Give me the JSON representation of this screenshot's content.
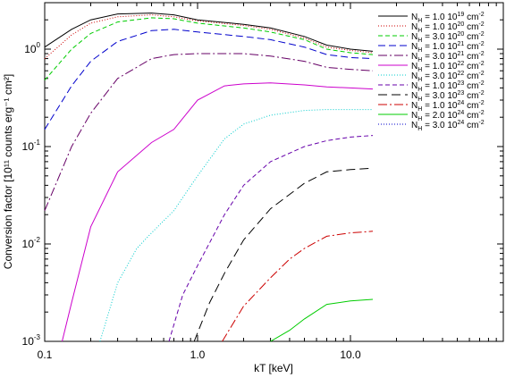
{
  "chart_data": {
    "type": "line",
    "title": "",
    "xlabel": "kT [keV]",
    "ylabel": "Conversion factor [10¹¹ counts erg⁻¹ cm²]",
    "x_scale": "log",
    "y_scale": "log",
    "xlim": [
      0.1,
      100
    ],
    "ylim": [
      0.001,
      3.0
    ],
    "x_ticks": [
      {
        "value": 0.1,
        "label": "0.1"
      },
      {
        "value": 1.0,
        "label": "1.0"
      },
      {
        "value": 10.0,
        "label": "10.0"
      }
    ],
    "y_ticks": [
      {
        "value": 1,
        "base": "10",
        "exp": "0"
      },
      {
        "value": 0.1,
        "base": "10",
        "exp": "-1"
      },
      {
        "value": 0.01,
        "base": "10",
        "exp": "-2"
      },
      {
        "value": 0.001,
        "base": "10",
        "exp": "-3"
      }
    ],
    "grid": false,
    "legend_position": "top-right",
    "series": [
      {
        "legend_prefix": "N",
        "legend_sub": "H",
        "legend_mid": " = 1.0 10",
        "legend_exp": "19",
        "legend_unit": " cm",
        "legend_unit_exp": "-2",
        "color": "#000000",
        "dash": "",
        "x": [
          0.1,
          0.15,
          0.2,
          0.3,
          0.5,
          0.7,
          1,
          2,
          3,
          5,
          7,
          10,
          14
        ],
        "y": [
          1.05,
          1.6,
          2.0,
          2.3,
          2.35,
          2.25,
          2.0,
          1.8,
          1.65,
          1.35,
          1.1,
          1.0,
          0.95
        ]
      },
      {
        "legend_prefix": "N",
        "legend_sub": "H",
        "legend_mid": " = 1.0 10",
        "legend_exp": "20",
        "legend_unit": " cm",
        "legend_unit_exp": "-2",
        "color": "#cc0000",
        "dash": "1,2",
        "x": [
          0.1,
          0.15,
          0.2,
          0.3,
          0.5,
          0.7,
          1,
          2,
          3,
          5,
          7,
          10,
          14
        ],
        "y": [
          0.8,
          1.4,
          1.85,
          2.15,
          2.25,
          2.15,
          1.95,
          1.75,
          1.6,
          1.3,
          1.05,
          0.97,
          0.92
        ]
      },
      {
        "legend_prefix": "N",
        "legend_sub": "H",
        "legend_mid": " = 3.0 10",
        "legend_exp": "20",
        "legend_unit": " cm",
        "legend_unit_exp": "-2",
        "color": "#00cc00",
        "dash": "5,3",
        "x": [
          0.1,
          0.15,
          0.2,
          0.3,
          0.5,
          0.7,
          1,
          2,
          3,
          5,
          7,
          10,
          14
        ],
        "y": [
          0.48,
          1.0,
          1.45,
          1.9,
          2.1,
          2.05,
          1.85,
          1.65,
          1.5,
          1.25,
          1.0,
          0.92,
          0.88
        ]
      },
      {
        "legend_prefix": "N",
        "legend_sub": "H",
        "legend_mid": " = 1.0 10",
        "legend_exp": "21",
        "legend_unit": " cm",
        "legend_unit_exp": "-2",
        "color": "#0000cc",
        "dash": "8,4",
        "x": [
          0.1,
          0.15,
          0.2,
          0.3,
          0.5,
          0.7,
          1,
          2,
          3,
          5,
          7,
          10,
          14
        ],
        "y": [
          0.15,
          0.42,
          0.75,
          1.2,
          1.55,
          1.6,
          1.5,
          1.35,
          1.25,
          1.05,
          0.88,
          0.82,
          0.8
        ]
      },
      {
        "legend_prefix": "N",
        "legend_sub": "H",
        "legend_mid": " = 3.0 10",
        "legend_exp": "21",
        "legend_unit": " cm",
        "legend_unit_exp": "-2",
        "color": "#660066",
        "dash": "10,3,2,3",
        "x": [
          0.1,
          0.15,
          0.2,
          0.3,
          0.5,
          0.7,
          1,
          2,
          3,
          5,
          7,
          10,
          14
        ],
        "y": [
          0.022,
          0.1,
          0.22,
          0.5,
          0.8,
          0.88,
          0.9,
          0.9,
          0.85,
          0.75,
          0.65,
          0.62,
          0.6
        ]
      },
      {
        "legend_prefix": "N",
        "legend_sub": "H",
        "legend_mid": " = 1.0 10",
        "legend_exp": "22",
        "legend_unit": " cm",
        "legend_unit_exp": "-2",
        "color": "#cc00cc",
        "dash": "",
        "x": [
          0.13,
          0.15,
          0.2,
          0.3,
          0.5,
          0.7,
          1,
          1.5,
          2,
          3,
          5,
          7,
          10,
          14
        ],
        "y": [
          0.001,
          0.0025,
          0.015,
          0.055,
          0.11,
          0.15,
          0.3,
          0.42,
          0.44,
          0.45,
          0.43,
          0.41,
          0.4,
          0.39
        ]
      },
      {
        "legend_prefix": "N",
        "legend_sub": "H",
        "legend_mid": " = 3.0 10",
        "legend_exp": "22",
        "legend_unit": " cm",
        "legend_unit_exp": "-2",
        "color": "#00cccc",
        "dash": "1,2",
        "x": [
          0.23,
          0.3,
          0.4,
          0.5,
          0.7,
          1,
          1.5,
          2,
          3,
          5,
          7,
          10,
          14
        ],
        "y": [
          0.001,
          0.004,
          0.009,
          0.013,
          0.022,
          0.05,
          0.12,
          0.17,
          0.21,
          0.235,
          0.24,
          0.24,
          0.24
        ]
      },
      {
        "legend_prefix": "N",
        "legend_sub": "H",
        "legend_mid": " = 1.0 10",
        "legend_exp": "23",
        "legend_unit": " cm",
        "legend_unit_exp": "-2",
        "color": "#6600aa",
        "dash": "5,3",
        "x": [
          0.65,
          0.8,
          1,
          1.5,
          2,
          3,
          5,
          7,
          10,
          14
        ],
        "y": [
          0.001,
          0.003,
          0.006,
          0.02,
          0.04,
          0.07,
          0.1,
          0.115,
          0.125,
          0.13
        ]
      },
      {
        "legend_prefix": "N",
        "legend_sub": "H",
        "legend_mid": " = 3.0 10",
        "legend_exp": "23",
        "legend_unit": " cm",
        "legend_unit_exp": "-2",
        "color": "#000000",
        "dash": "10,5",
        "x": [
          0.95,
          1.2,
          1.5,
          2,
          3,
          5,
          7,
          10,
          14
        ],
        "y": [
          0.001,
          0.0025,
          0.005,
          0.011,
          0.023,
          0.042,
          0.055,
          0.058,
          0.06
        ]
      },
      {
        "legend_prefix": "N",
        "legend_sub": "H",
        "legend_mid": " = 1.0 10",
        "legend_exp": "24",
        "legend_unit": " cm",
        "legend_unit_exp": "-2",
        "color": "#cc0000",
        "dash": "10,3,2,3",
        "x": [
          1.45,
          2,
          3,
          4,
          5,
          7,
          10,
          14
        ],
        "y": [
          0.001,
          0.0023,
          0.0045,
          0.007,
          0.009,
          0.012,
          0.013,
          0.0135
        ]
      },
      {
        "legend_prefix": "N",
        "legend_sub": "H",
        "legend_mid": " = 2.0 10",
        "legend_exp": "24",
        "legend_unit": " cm",
        "legend_unit_exp": "-2",
        "color": "#00cc00",
        "dash": "",
        "x": [
          3.0,
          4,
          5,
          7,
          10,
          14
        ],
        "y": [
          0.001,
          0.0013,
          0.0017,
          0.0024,
          0.0026,
          0.0027
        ]
      },
      {
        "legend_prefix": "N",
        "legend_sub": "H",
        "legend_mid": " = 3.0 10",
        "legend_exp": "24",
        "legend_unit": " cm",
        "legend_unit_exp": "-2",
        "color": "#0000cc",
        "dash": "1,2",
        "x": [],
        "y": []
      }
    ]
  }
}
